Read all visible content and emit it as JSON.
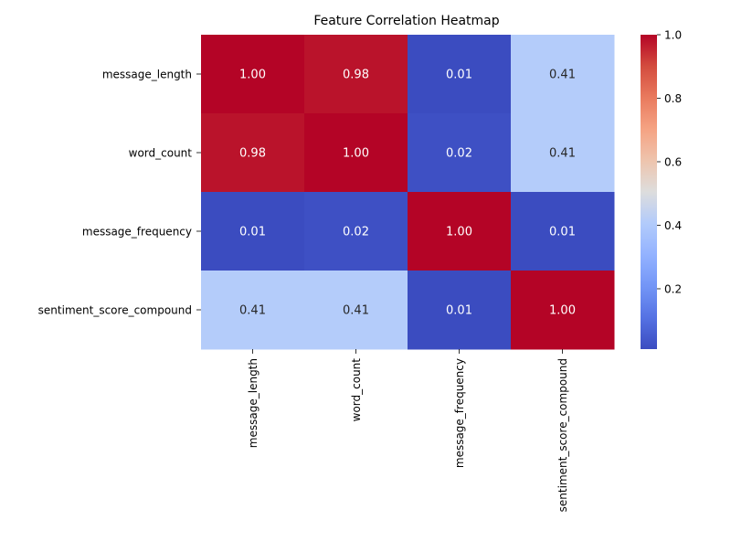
{
  "chart_data": {
    "type": "heatmap",
    "title": "Feature Correlation Heatmap",
    "row_labels": [
      "message_length",
      "word_count",
      "message_frequency",
      "sentiment_score_compound"
    ],
    "col_labels": [
      "message_length",
      "word_count",
      "message_frequency",
      "sentiment_score_compound"
    ],
    "values": [
      [
        1.0,
        0.98,
        0.01,
        0.41
      ],
      [
        0.98,
        1.0,
        0.02,
        0.41
      ],
      [
        0.01,
        0.02,
        1.0,
        0.01
      ],
      [
        0.41,
        0.41,
        0.01,
        1.0
      ]
    ],
    "value_format": "0.00",
    "colormap": "coolwarm",
    "vmin": 0.01,
    "vmax": 1.0,
    "colorbar_ticks": [
      0.2,
      0.4,
      0.6,
      0.8,
      1.0
    ],
    "colorbar_tick_labels": [
      "0.2",
      "0.4",
      "0.6",
      "0.8",
      "1.0"
    ],
    "colors": {
      "low": "#3b4cc0",
      "mid": "#dddddd",
      "high": "#b40426"
    }
  }
}
